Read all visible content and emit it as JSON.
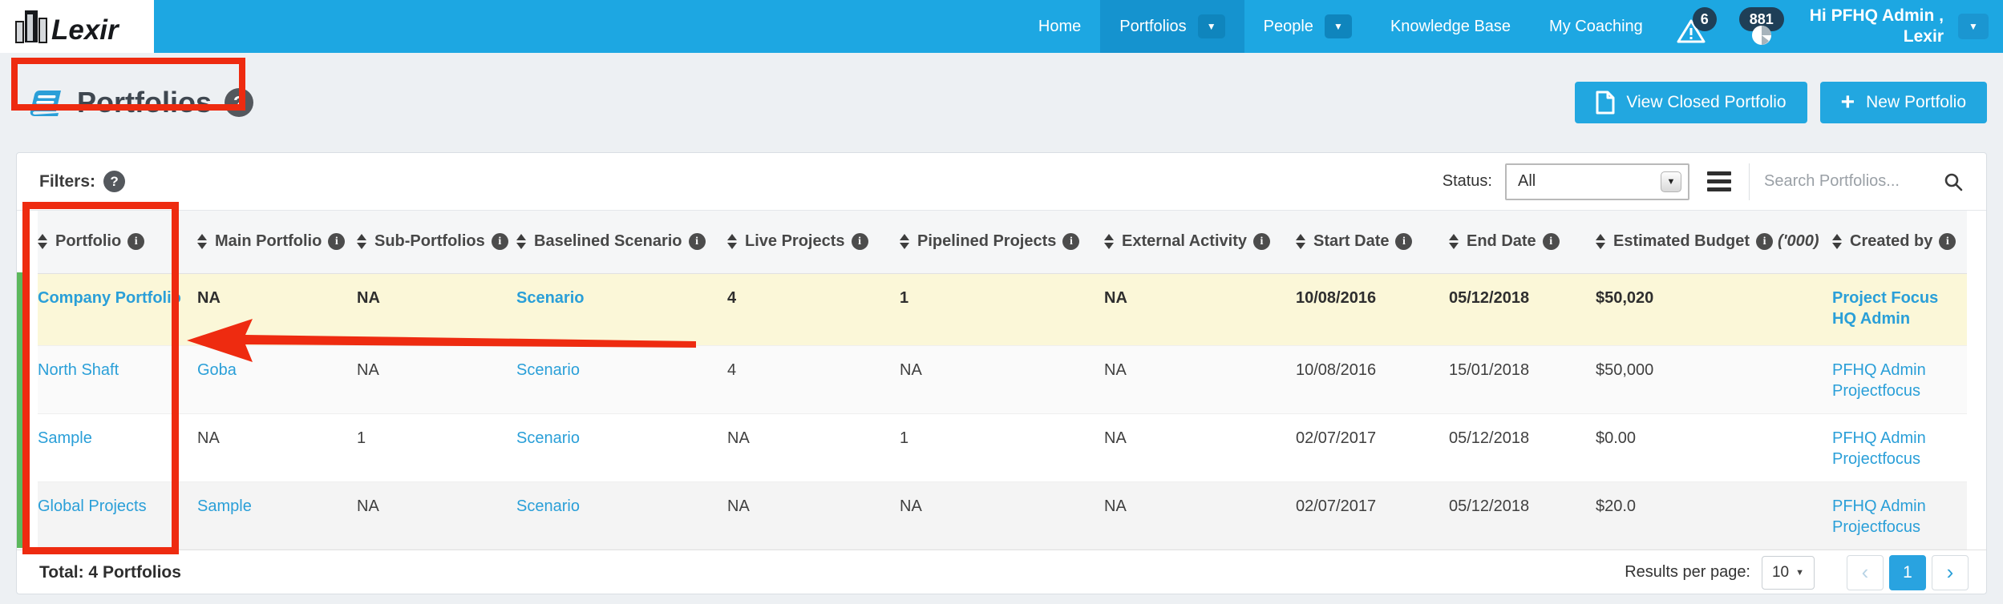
{
  "nav": {
    "brand": "Lexir",
    "items": [
      {
        "label": "Home",
        "active": false,
        "dropdown": false
      },
      {
        "label": "Portfolios",
        "active": true,
        "dropdown": true
      },
      {
        "label": "People",
        "active": false,
        "dropdown": true
      },
      {
        "label": "Knowledge Base",
        "active": false,
        "dropdown": false
      },
      {
        "label": "My Coaching",
        "active": false,
        "dropdown": false
      }
    ],
    "alerts_badge": "6",
    "actions_badge": "881",
    "greeting_line1": "Hi PFHQ Admin ,",
    "greeting_line2": "Lexir"
  },
  "page": {
    "title": "Portfolios",
    "buttons": {
      "view_closed": "View Closed Portfolio",
      "new_portfolio": "New Portfolio"
    }
  },
  "filters": {
    "label": "Filters:",
    "status_label": "Status:",
    "status_value": "All",
    "search_placeholder": "Search Portfolios..."
  },
  "table": {
    "columns": [
      {
        "label": "Portfolio"
      },
      {
        "label": "Main Portfolio"
      },
      {
        "label": "Sub-Portfolios"
      },
      {
        "label": "Baselined Scenario"
      },
      {
        "label": "Live Projects"
      },
      {
        "label": "Pipelined Projects"
      },
      {
        "label": "External Activity"
      },
      {
        "label": "Start Date"
      },
      {
        "label": "End Date"
      },
      {
        "label": "Estimated Budget",
        "suffix": "('000)"
      },
      {
        "label": "Created by"
      }
    ],
    "rows": [
      {
        "cells": [
          {
            "t": "Company Portfolio",
            "link": true
          },
          {
            "t": "NA"
          },
          {
            "t": "NA"
          },
          {
            "t": "Scenario",
            "link": true
          },
          {
            "t": "4"
          },
          {
            "t": "1"
          },
          {
            "t": "NA"
          },
          {
            "t": "10/08/2016"
          },
          {
            "t": "05/12/2018"
          },
          {
            "t": "$50,020"
          },
          {
            "t": "Project Focus HQ Admin",
            "link": true
          }
        ]
      },
      {
        "cells": [
          {
            "t": "North Shaft",
            "link": true
          },
          {
            "t": "Goba",
            "link": true
          },
          {
            "t": "NA"
          },
          {
            "t": "Scenario",
            "link": true
          },
          {
            "t": "4"
          },
          {
            "t": "NA"
          },
          {
            "t": "NA"
          },
          {
            "t": "10/08/2016"
          },
          {
            "t": "15/01/2018"
          },
          {
            "t": "$50,000"
          },
          {
            "t": "PFHQ Admin Projectfocus",
            "link": true
          }
        ]
      },
      {
        "cells": [
          {
            "t": "Sample",
            "link": true
          },
          {
            "t": "NA"
          },
          {
            "t": "1"
          },
          {
            "t": "Scenario",
            "link": true
          },
          {
            "t": "NA"
          },
          {
            "t": "1"
          },
          {
            "t": "NA"
          },
          {
            "t": "02/07/2017"
          },
          {
            "t": "05/12/2018"
          },
          {
            "t": "$0.00"
          },
          {
            "t": "PFHQ Admin Projectfocus",
            "link": true
          }
        ]
      },
      {
        "cells": [
          {
            "t": "Global Projects",
            "link": true
          },
          {
            "t": "Sample",
            "link": true
          },
          {
            "t": "NA"
          },
          {
            "t": "Scenario",
            "link": true
          },
          {
            "t": "NA"
          },
          {
            "t": "NA"
          },
          {
            "t": "NA"
          },
          {
            "t": "02/07/2017"
          },
          {
            "t": "05/12/2018"
          },
          {
            "t": "$20.0"
          },
          {
            "t": "PFHQ Admin Projectfocus",
            "link": true
          }
        ]
      }
    ]
  },
  "footer": {
    "total": "Total: 4 Portfolios",
    "results_per_page_label": "Results per page:",
    "results_per_page_value": "10",
    "current_page": "1"
  },
  "colors": {
    "nav_blue": "#1da7e2",
    "nav_active_blue": "#1593cf",
    "link_blue": "#2a9fd8",
    "highlight_yellow": "#fbf7d8",
    "annotation_red": "#ee2b10",
    "row_accent_green": "#5cb85c",
    "badge_navy": "#1f3f57"
  }
}
